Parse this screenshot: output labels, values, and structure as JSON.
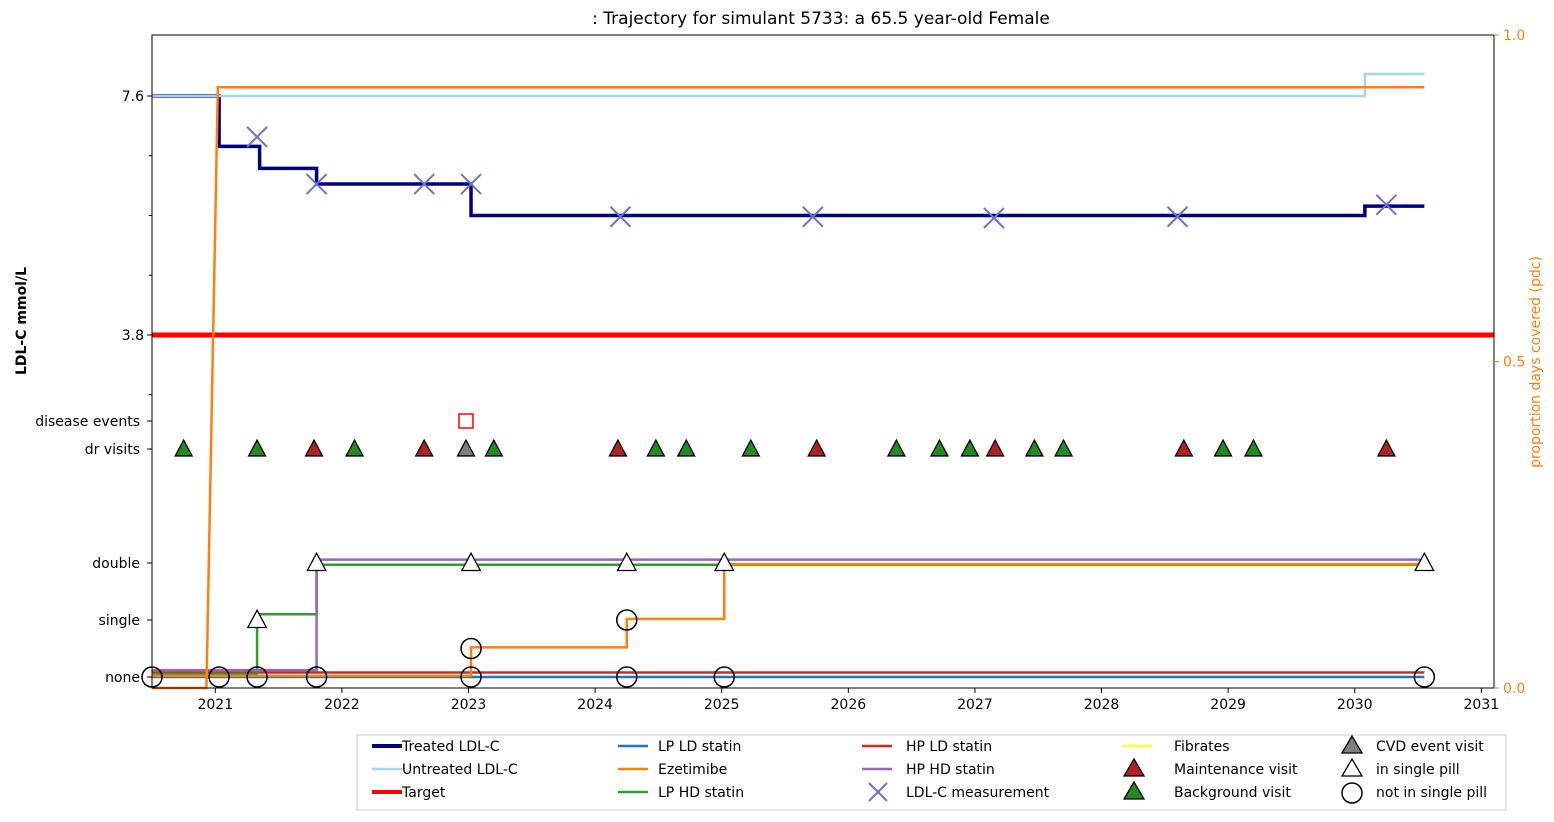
{
  "chart_data": {
    "type": "line",
    "title": ": Trajectory for simulant 5733: a 65.5 year-old Female",
    "ylabel": "LDL-C mmol/L",
    "y2label": "proportion days covered (pdc)",
    "xlim": [
      2020.5,
      2031.1
    ],
    "x_ticks": [
      "2021",
      "2022",
      "2023",
      "2024",
      "2025",
      "2026",
      "2027",
      "2028",
      "2029",
      "2030",
      "2031"
    ],
    "y_ticks": [
      "7.6",
      "3.8"
    ],
    "y_levels": [
      "disease events",
      "dr visits",
      "double",
      "single",
      "none"
    ],
    "y2_ticks": [
      "1.0",
      "0.5",
      "0.0"
    ],
    "y2lim": [
      0.0,
      1.0
    ],
    "colors": {
      "treated": "#00007f",
      "untreated": "#a6d4ea",
      "target": "#ff0000",
      "lp_ld": "#1f77b4",
      "ezetimibe": "#ff7f0e",
      "lp_hd": "#2ca02c",
      "hp_ld": "#d62728",
      "hp_hd": "#9467bd",
      "fibrates": "#ffff33",
      "measurement": "#7070d0",
      "cvd": "#7f7f7f",
      "maintenance": "#b22222",
      "background": "#228b22"
    },
    "series": [
      {
        "name": "Treated LDL-C",
        "kind": "step",
        "axis": "ldl",
        "x": [
          2020.5,
          2021.03,
          2021.35,
          2021.8,
          2023.02,
          2030.08,
          2030.55
        ],
        "y": [
          7.6,
          6.8,
          6.45,
          6.2,
          5.7,
          5.85,
          5.85
        ]
      },
      {
        "name": "Untreated LDL-C",
        "kind": "step",
        "axis": "ldl",
        "x": [
          2020.5,
          2030.08,
          2030.55
        ],
        "y": [
          7.6,
          7.95,
          7.95
        ]
      },
      {
        "name": "Target",
        "kind": "hline",
        "axis": "ldl",
        "y": 3.8
      },
      {
        "name": "Ezetimibe",
        "kind": "line",
        "axis": "pdc",
        "x": [
          2020.5,
          2020.93,
          2021.02,
          2030.55
        ],
        "y": [
          0.0,
          0.0,
          0.92,
          0.92
        ]
      }
    ],
    "measurements": {
      "name": "LDL-C measurement",
      "x": [
        2021.33,
        2021.8,
        2022.65,
        2023.02,
        2024.2,
        2025.72,
        2027.15,
        2028.6,
        2030.25
      ],
      "y": [
        6.95,
        6.2,
        6.2,
        6.2,
        5.68,
        5.68,
        5.66,
        5.68,
        5.87
      ]
    },
    "disease_events": {
      "x": [
        2022.98
      ]
    },
    "visits": [
      {
        "x": 2020.75,
        "type": "background"
      },
      {
        "x": 2021.33,
        "type": "background"
      },
      {
        "x": 2021.78,
        "type": "maintenance"
      },
      {
        "x": 2022.1,
        "type": "background"
      },
      {
        "x": 2022.65,
        "type": "maintenance"
      },
      {
        "x": 2022.98,
        "type": "cvd"
      },
      {
        "x": 2023.2,
        "type": "background"
      },
      {
        "x": 2024.18,
        "type": "maintenance"
      },
      {
        "x": 2024.48,
        "type": "background"
      },
      {
        "x": 2024.72,
        "type": "background"
      },
      {
        "x": 2025.23,
        "type": "background"
      },
      {
        "x": 2025.75,
        "type": "maintenance"
      },
      {
        "x": 2026.38,
        "type": "background"
      },
      {
        "x": 2026.72,
        "type": "background"
      },
      {
        "x": 2026.96,
        "type": "background"
      },
      {
        "x": 2027.16,
        "type": "maintenance"
      },
      {
        "x": 2027.47,
        "type": "background"
      },
      {
        "x": 2027.7,
        "type": "background"
      },
      {
        "x": 2028.65,
        "type": "maintenance"
      },
      {
        "x": 2028.96,
        "type": "background"
      },
      {
        "x": 2029.2,
        "type": "background"
      },
      {
        "x": 2030.25,
        "type": "maintenance"
      }
    ],
    "medication_lines": [
      {
        "name": "LP LD statin",
        "x": [
          2020.5,
          2030.55
        ],
        "level": [
          0.0,
          0.0
        ]
      },
      {
        "name": "HP LD statin",
        "x": [
          2020.5,
          2030.55
        ],
        "level": [
          0.08,
          0.08
        ]
      },
      {
        "name": "Fibrates",
        "x": [
          2025.02,
          2030.55
        ],
        "level": [
          1.96,
          1.96
        ]
      },
      {
        "name": "LP HD statin",
        "steps_x": [
          2020.5,
          2021.33,
          2021.8,
          2030.55
        ],
        "steps_level": [
          0.05,
          1.1,
          1.97,
          1.97
        ]
      },
      {
        "name": "HP HD statin",
        "steps_x": [
          2020.5,
          2021.8,
          2030.55
        ],
        "steps_level": [
          0.12,
          2.06,
          2.06
        ]
      },
      {
        "name": "Ezetimibe level",
        "steps_x": [
          2020.5,
          2023.02,
          2024.25,
          2025.02,
          2030.55
        ],
        "steps_level": [
          0.02,
          0.52,
          1.02,
          1.98,
          1.98
        ]
      }
    ],
    "pill_markers": [
      {
        "x": 2020.5,
        "level": 0,
        "shape": "circle"
      },
      {
        "x": 2021.03,
        "level": 0,
        "shape": "circle"
      },
      {
        "x": 2021.33,
        "level": 0,
        "shape": "circle"
      },
      {
        "x": 2021.8,
        "level": 0,
        "shape": "circle"
      },
      {
        "x": 2023.02,
        "level": 0,
        "shape": "circle"
      },
      {
        "x": 2024.25,
        "level": 0,
        "shape": "circle"
      },
      {
        "x": 2025.02,
        "level": 0,
        "shape": "circle"
      },
      {
        "x": 2030.55,
        "level": 0,
        "shape": "circle"
      },
      {
        "x": 2023.02,
        "level": 0.5,
        "shape": "circle"
      },
      {
        "x": 2024.25,
        "level": 1,
        "shape": "circle"
      },
      {
        "x": 2021.33,
        "level": 1,
        "shape": "triangle"
      },
      {
        "x": 2021.8,
        "level": 2,
        "shape": "triangle"
      },
      {
        "x": 2023.02,
        "level": 2,
        "shape": "triangle"
      },
      {
        "x": 2024.25,
        "level": 2,
        "shape": "triangle"
      },
      {
        "x": 2025.02,
        "level": 2,
        "shape": "triangle"
      },
      {
        "x": 2030.55,
        "level": 2,
        "shape": "triangle"
      }
    ],
    "legend": {
      "position": "bottom",
      "items": [
        {
          "label": "Treated LDL-C",
          "marker": "line",
          "color": "#00007f"
        },
        {
          "label": "Untreated LDL-C",
          "marker": "line",
          "color": "#a6d4ea"
        },
        {
          "label": "Target",
          "marker": "line",
          "color": "#ff0000"
        },
        {
          "label": "LP LD statin",
          "marker": "line",
          "color": "#1f77b4"
        },
        {
          "label": "Ezetimibe",
          "marker": "line",
          "color": "#ff7f0e"
        },
        {
          "label": "LP HD statin",
          "marker": "line",
          "color": "#2ca02c"
        },
        {
          "label": "HP LD statin",
          "marker": "line",
          "color": "#d62728"
        },
        {
          "label": "HP HD statin",
          "marker": "line",
          "color": "#9467bd"
        },
        {
          "label": "LDL-C measurement",
          "marker": "x",
          "color": "#7070d0"
        },
        {
          "label": "Fibrates",
          "marker": "line",
          "color": "#ffff33"
        },
        {
          "label": "Maintenance visit",
          "marker": "triangle",
          "color": "#b22222"
        },
        {
          "label": "Background visit",
          "marker": "triangle",
          "color": "#228b22"
        },
        {
          "label": "CVD event visit",
          "marker": "triangle",
          "color": "#7f7f7f"
        },
        {
          "label": "in single pill",
          "marker": "triangle-open",
          "color": "#000000"
        },
        {
          "label": "not in single pill",
          "marker": "circle-open",
          "color": "#000000"
        }
      ]
    }
  }
}
